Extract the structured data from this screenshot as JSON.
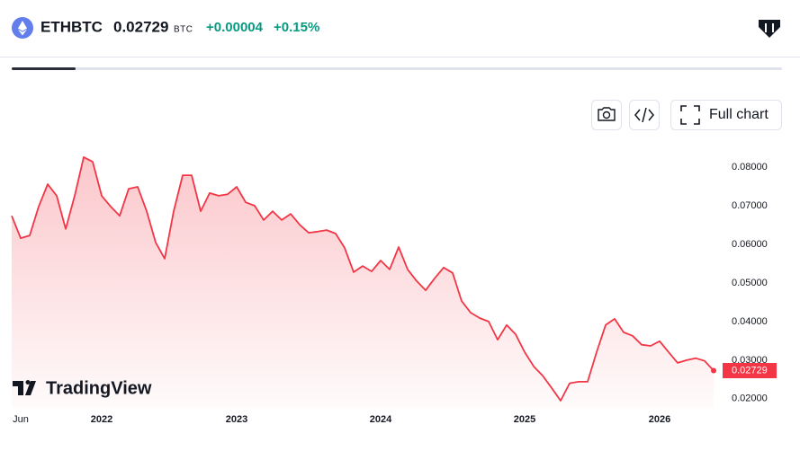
{
  "header": {
    "symbol": "ETHBTC",
    "price": "0.02729",
    "currency": "BTC",
    "change": "+0.00004",
    "change_percent": "+0.15%"
  },
  "toolbar": {
    "full_chart": "Full chart"
  },
  "watermark": "TradingView",
  "chart_data": {
    "type": "area",
    "color": "#f23645",
    "categories": [
      null,
      "Jun",
      null,
      null,
      null,
      null,
      null,
      null,
      null,
      null,
      "2022",
      null,
      null,
      null,
      null,
      null,
      null,
      null,
      null,
      null,
      null,
      null,
      null,
      null,
      null,
      "2023",
      null,
      null,
      null,
      null,
      null,
      null,
      null,
      null,
      null,
      null,
      null,
      null,
      null,
      null,
      null,
      "2024",
      null,
      null,
      null,
      null,
      null,
      null,
      null,
      null,
      null,
      null,
      null,
      null,
      null,
      null,
      null,
      "2025",
      null,
      null,
      null,
      null,
      null,
      null,
      null,
      null,
      null,
      null,
      null,
      null,
      null,
      null,
      "2026",
      null,
      null,
      null,
      null,
      null,
      null
    ],
    "values": [
      0.0674,
      0.0616,
      0.0623,
      0.0698,
      0.0756,
      0.0726,
      0.064,
      0.0726,
      0.0826,
      0.0814,
      0.0726,
      0.0698,
      0.0674,
      0.0744,
      0.0749,
      0.0686,
      0.0605,
      0.0563,
      0.0686,
      0.0779,
      0.0779,
      0.0686,
      0.0733,
      0.0726,
      0.073,
      0.0749,
      0.0709,
      0.07,
      0.0663,
      0.0686,
      0.0663,
      0.0679,
      0.0651,
      0.063,
      0.0633,
      0.0637,
      0.0628,
      0.0591,
      0.0528,
      0.0544,
      0.053,
      0.0558,
      0.0535,
      0.0593,
      0.0535,
      0.0505,
      0.0481,
      0.0512,
      0.054,
      0.0526,
      0.0453,
      0.0423,
      0.0409,
      0.04,
      0.0353,
      0.0391,
      0.0367,
      0.0321,
      0.0284,
      0.026,
      0.0228,
      0.0195,
      0.024,
      0.0244,
      0.0244,
      0.0321,
      0.0391,
      0.0407,
      0.0372,
      0.0363,
      0.034,
      0.0337,
      0.0349,
      0.0321,
      0.0293,
      0.03,
      0.0305,
      0.0298,
      0.02729
    ],
    "ylim": [
      0.0174,
      0.0884
    ],
    "yticks": [
      {
        "value": 0.02,
        "label": "0.02000"
      },
      {
        "value": 0.03,
        "label": "0.03000"
      },
      {
        "value": 0.04,
        "label": "0.04000"
      },
      {
        "value": 0.05,
        "label": "0.05000"
      },
      {
        "value": 0.06,
        "label": "0.06000"
      },
      {
        "value": 0.07,
        "label": "0.07000"
      },
      {
        "value": 0.08,
        "label": "0.08000"
      }
    ],
    "grid": false
  }
}
